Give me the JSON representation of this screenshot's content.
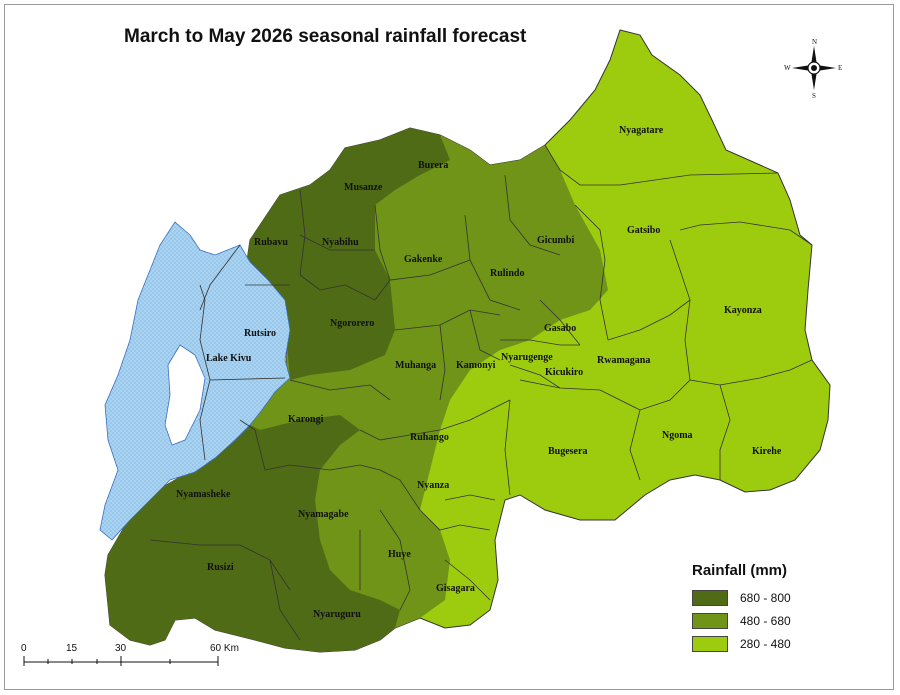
{
  "title": "March to May 2026 seasonal rainfall forecast",
  "lake_label": "Lake Kivu",
  "districts": [
    "Nyagatare",
    "Burera",
    "Musanze",
    "Gatsibo",
    "Rubavu",
    "Nyabihu",
    "Gicumbi",
    "Gakenke",
    "Rulindo",
    "Kayonza",
    "Rutsiro",
    "Ngororero",
    "Gasabo",
    "Nyarugenge",
    "Muhanga",
    "Kamonyi",
    "Rwamagana",
    "Kicukiro",
    "Karongi",
    "Ruhango",
    "Bugesera",
    "Ngoma",
    "Kirehe",
    "Nyanza",
    "Nyamasheke",
    "Nyamagabe",
    "Huye",
    "Rusizi",
    "Gisagara",
    "Nyaruguru"
  ],
  "legend": {
    "title": "Rainfall (mm)",
    "classes": [
      {
        "label": "680 - 800",
        "color": "#4f6b16"
      },
      {
        "label": "480 - 680",
        "color": "#6f9417"
      },
      {
        "label": "280 - 480",
        "color": "#9dcc0f"
      }
    ]
  },
  "lake_color": "#a8d4f2",
  "scale_bar": {
    "labels": [
      "0",
      "15",
      "30",
      "60 Km"
    ]
  },
  "compass": {
    "n": "N",
    "s": "S",
    "e": "E",
    "w": "W"
  }
}
